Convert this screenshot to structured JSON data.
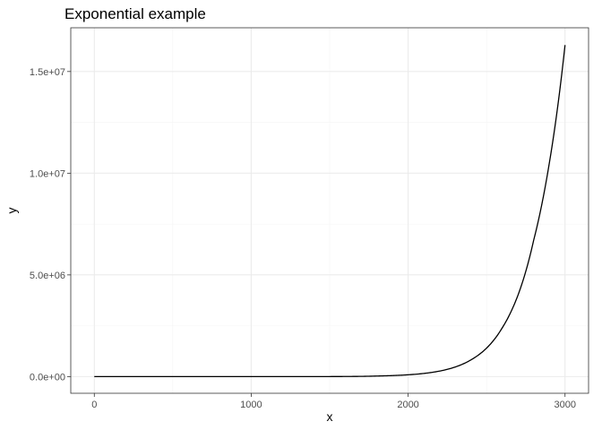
{
  "chart_data": {
    "type": "line",
    "title": "Exponential example",
    "xlabel": "x",
    "ylabel": "y",
    "xlim": [
      -150,
      3150
    ],
    "ylim": [
      -820000,
      17150000
    ],
    "x_ticks": [
      0,
      1000,
      2000,
      3000
    ],
    "x_tick_labels": [
      "0",
      "1000",
      "2000",
      "3000"
    ],
    "y_ticks": [
      0,
      5000000,
      10000000,
      15000000
    ],
    "y_tick_labels": [
      "0.0e+00",
      "5.0e+06",
      "1.0e+07",
      "1.5e+07"
    ],
    "grid": true,
    "legend": "none",
    "line_color": "#000000",
    "series": [
      {
        "x": [
          0,
          500,
          1000,
          1500,
          1800,
          2000,
          2200,
          2400,
          2500,
          2600,
          2700,
          2800,
          2900,
          3000
        ],
        "y": [
          1,
          3,
          22,
          2000,
          28000,
          89000,
          270000,
          820000,
          1400000,
          2400000,
          4000000,
          6700000,
          10500000,
          16300000
        ]
      }
    ]
  }
}
